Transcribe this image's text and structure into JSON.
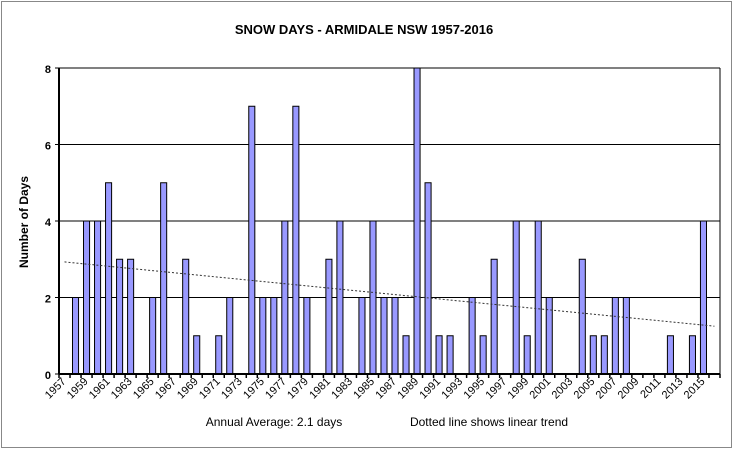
{
  "chart_data": {
    "type": "bar",
    "title": "SNOW DAYS - ARMIDALE NSW  1957-2016",
    "xlabel": "",
    "ylabel": "Number of Days",
    "ylim": [
      0,
      8
    ],
    "yticks": [
      "0",
      "2",
      "4",
      "6",
      "8"
    ],
    "grid": true,
    "categories": [
      1957,
      1958,
      1959,
      1960,
      1961,
      1962,
      1963,
      1964,
      1965,
      1966,
      1967,
      1968,
      1969,
      1970,
      1971,
      1972,
      1973,
      1974,
      1975,
      1976,
      1977,
      1978,
      1979,
      1980,
      1981,
      1982,
      1983,
      1984,
      1985,
      1986,
      1987,
      1988,
      1989,
      1990,
      1991,
      1992,
      1993,
      1994,
      1995,
      1996,
      1997,
      1998,
      1999,
      2000,
      2001,
      2002,
      2003,
      2004,
      2005,
      2006,
      2007,
      2008,
      2009,
      2010,
      2011,
      2012,
      2013,
      2014,
      2015,
      2016
    ],
    "values": [
      0,
      2,
      4,
      4,
      5,
      3,
      3,
      0,
      2,
      5,
      0,
      3,
      1,
      0,
      1,
      2,
      0,
      7,
      2,
      2,
      4,
      7,
      2,
      0,
      3,
      4,
      0,
      2,
      4,
      2,
      2,
      1,
      8,
      5,
      1,
      1,
      0,
      2,
      1,
      3,
      0,
      4,
      1,
      4,
      2,
      0,
      0,
      3,
      1,
      1,
      2,
      2,
      0,
      0,
      0,
      1,
      0,
      1,
      4,
      0
    ],
    "bar_color": "#9999ff",
    "trend": {
      "style": "dotted",
      "start": [
        1957,
        2.93
      ],
      "end": [
        2016,
        1.25
      ]
    },
    "footnote_left": "Annual Average: 2.1 days",
    "footnote_right": "Dotted line shows  linear trend"
  }
}
